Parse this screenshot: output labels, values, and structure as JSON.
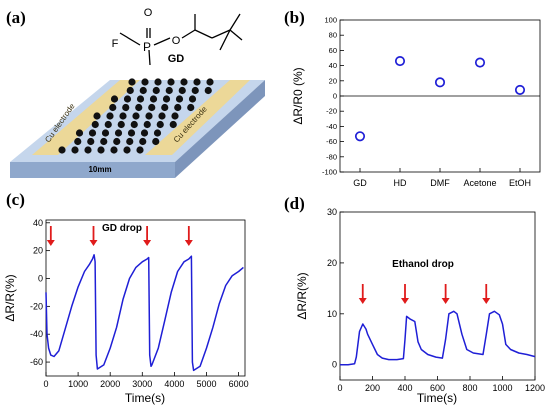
{
  "colors": {
    "series": "#1f1fd6",
    "annotation": "#e01b1b",
    "substrate_top": "#c5d6ec",
    "substrate_side": "#8fa8cc",
    "electrode": "#ecd898"
  },
  "panel_a": {
    "label": "(a)",
    "molecule": {
      "P": "P",
      "O_top": "O",
      "F": "F",
      "O_ester": "O",
      "name": "GD"
    },
    "electrode_left": "Cu electrode",
    "electrode_right": "Cu electrode",
    "dimension": "10mm"
  },
  "panel_b": {
    "label": "(b)"
  },
  "panel_c": {
    "label": "(c)",
    "annotation": "GD drop"
  },
  "panel_d": {
    "label": "(d)",
    "annotation": "Ethanol drop"
  },
  "chart_data": [
    {
      "id": "b",
      "type": "scatter",
      "title": "",
      "ylabel": "ΔR/R0 (%)",
      "xlabel": "",
      "categories": [
        "GD",
        "HD",
        "DMF",
        "Acetone",
        "EtOH"
      ],
      "values": [
        -53,
        46,
        18,
        44,
        8
      ],
      "ylim": [
        -100,
        100
      ],
      "yticks": [
        -100,
        -80,
        -60,
        -40,
        -20,
        0,
        20,
        40,
        60,
        80,
        100
      ],
      "zero_line": true,
      "marker": "open-circle"
    },
    {
      "id": "c",
      "type": "line",
      "title": "",
      "xlabel": "Time(s)",
      "ylabel": "ΔR/R(%)",
      "xlim": [
        0,
        6200
      ],
      "ylim": [
        -70,
        42
      ],
      "xticks": [
        0,
        1000,
        2000,
        3000,
        4000,
        5000,
        6000
      ],
      "yticks": [
        -60,
        -40,
        -20,
        0,
        20,
        40
      ],
      "x": [
        0,
        30,
        80,
        150,
        250,
        400,
        600,
        800,
        1000,
        1200,
        1350,
        1450,
        1500,
        1530,
        1560,
        1600,
        1800,
        2000,
        2200,
        2400,
        2600,
        2800,
        3000,
        3150,
        3200,
        3230,
        3270,
        3300,
        3500,
        3700,
        3900,
        4100,
        4300,
        4450,
        4530,
        4560,
        4600,
        4800,
        5000,
        5200,
        5400,
        5600,
        5800,
        6000,
        6150
      ],
      "y": [
        -10,
        -40,
        -50,
        -55,
        -56,
        -52,
        -36,
        -20,
        -6,
        5,
        10,
        14,
        17,
        12,
        -55,
        -65,
        -62,
        -50,
        -35,
        -15,
        0,
        8,
        12,
        14,
        15,
        -55,
        -63,
        -62,
        -50,
        -30,
        -10,
        5,
        12,
        14,
        16,
        -60,
        -66,
        -63,
        -50,
        -35,
        -18,
        -5,
        2,
        5,
        8
      ],
      "drop_markers_x": [
        150,
        1480,
        3150,
        4450
      ]
    },
    {
      "id": "d",
      "type": "line",
      "title": "",
      "xlabel": "Time(s)",
      "ylabel": "ΔR/R(%)",
      "xlim": [
        0,
        1200
      ],
      "ylim": [
        -3,
        30
      ],
      "xticks": [
        0,
        200,
        400,
        600,
        800,
        1000,
        1200
      ],
      "yticks": [
        0,
        10,
        20,
        30
      ],
      "x": [
        0,
        50,
        90,
        100,
        120,
        140,
        160,
        170,
        200,
        230,
        260,
        300,
        350,
        390,
        400,
        410,
        430,
        460,
        480,
        500,
        540,
        590,
        630,
        650,
        670,
        700,
        720,
        750,
        780,
        820,
        880,
        900,
        920,
        950,
        980,
        1000,
        1020,
        1050,
        1100,
        1150,
        1200
      ],
      "y": [
        0,
        0,
        0.2,
        1.5,
        6.5,
        8,
        7,
        6,
        4,
        2,
        1.3,
        1,
        1,
        1.2,
        5,
        9.5,
        9,
        8.5,
        4.5,
        3,
        2,
        1.5,
        1.3,
        5,
        10,
        10.5,
        10,
        6,
        3,
        2.3,
        2,
        6,
        10,
        10.5,
        9.8,
        8,
        4,
        3,
        2.3,
        2,
        1.6
      ],
      "drop_markers_x": [
        140,
        400,
        650,
        900
      ]
    }
  ]
}
